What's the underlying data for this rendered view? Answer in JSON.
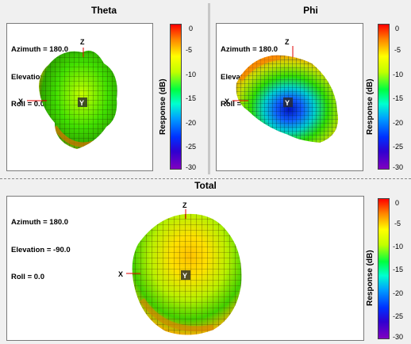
{
  "panels": [
    {
      "title": "Theta",
      "info": {
        "azimuth": "Azimuth = 180.0",
        "elevation": "Elevation = -90.0",
        "roll": "Roll = 0.0"
      },
      "axes": {
        "x": "X",
        "y": "Y",
        "z": "Z"
      }
    },
    {
      "title": "Phi",
      "info": {
        "azimuth": "Azimuth = 180.0",
        "elevation": "Elevation = -90.0",
        "roll": "Roll = 0.0"
      },
      "axes": {
        "x": "X",
        "y": "Y",
        "z": "Z"
      }
    },
    {
      "title": "Total",
      "info": {
        "azimuth": "Azimuth = 180.0",
        "elevation": "Elevation = -90.0",
        "roll": "Roll = 0.0"
      },
      "axes": {
        "x": "X",
        "y": "Y",
        "z": "Z"
      }
    }
  ],
  "chart_data": {
    "type": "other",
    "colorbar": {
      "label": "Response (dB)",
      "ticks": [
        "0",
        "-5",
        "-10",
        "-15",
        "-20",
        "-25",
        "-30"
      ],
      "range": [
        -30,
        0
      ]
    }
  }
}
